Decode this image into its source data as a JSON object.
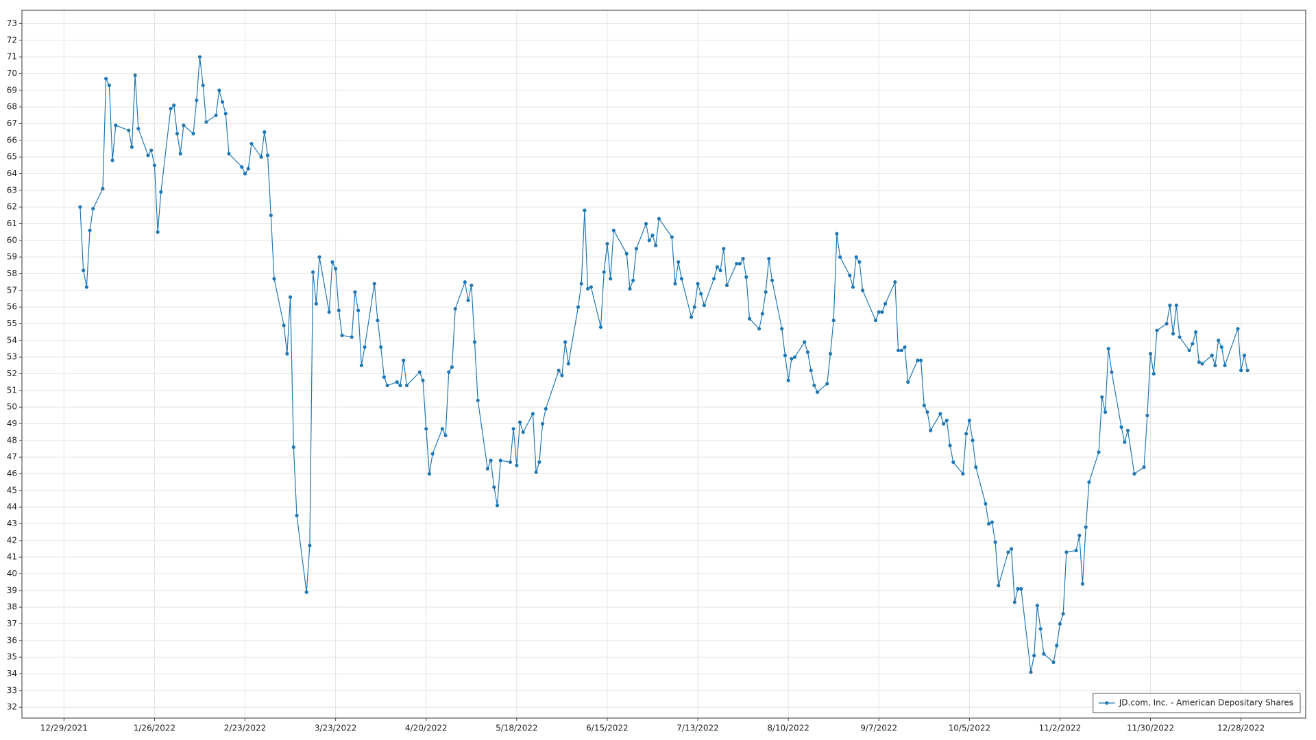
{
  "chart_data": {
    "type": "line",
    "x": [
      "1/3/2022",
      "1/4/2022",
      "1/5/2022",
      "1/6/2022",
      "1/7/2022",
      "1/10/2022",
      "1/11/2022",
      "1/12/2022",
      "1/13/2022",
      "1/14/2022",
      "1/18/2022",
      "1/19/2022",
      "1/20/2022",
      "1/21/2022",
      "1/24/2022",
      "1/25/2022",
      "1/26/2022",
      "1/27/2022",
      "1/28/2022",
      "1/31/2022",
      "2/1/2022",
      "2/2/2022",
      "2/3/2022",
      "2/4/2022",
      "2/7/2022",
      "2/8/2022",
      "2/9/2022",
      "2/10/2022",
      "2/11/2022",
      "2/14/2022",
      "2/15/2022",
      "2/16/2022",
      "2/17/2022",
      "2/18/2022",
      "2/22/2022",
      "2/23/2022",
      "2/24/2022",
      "2/25/2022",
      "2/28/2022",
      "3/1/2022",
      "3/2/2022",
      "3/3/2022",
      "3/4/2022",
      "3/7/2022",
      "3/8/2022",
      "3/9/2022",
      "3/10/2022",
      "3/11/2022",
      "3/14/2022",
      "3/15/2022",
      "3/16/2022",
      "3/17/2022",
      "3/18/2022",
      "3/21/2022",
      "3/22/2022",
      "3/23/2022",
      "3/24/2022",
      "3/25/2022",
      "3/28/2022",
      "3/29/2022",
      "3/30/2022",
      "3/31/2022",
      "4/1/2022",
      "4/4/2022",
      "4/5/2022",
      "4/6/2022",
      "4/7/2022",
      "4/8/2022",
      "4/11/2022",
      "4/12/2022",
      "4/13/2022",
      "4/14/2022",
      "4/18/2022",
      "4/19/2022",
      "4/20/2022",
      "4/21/2022",
      "4/22/2022",
      "4/25/2022",
      "4/26/2022",
      "4/27/2022",
      "4/28/2022",
      "4/29/2022",
      "5/2/2022",
      "5/3/2022",
      "5/4/2022",
      "5/5/2022",
      "5/6/2022",
      "5/9/2022",
      "5/10/2022",
      "5/11/2022",
      "5/12/2022",
      "5/13/2022",
      "5/16/2022",
      "5/17/2022",
      "5/18/2022",
      "5/19/2022",
      "5/20/2022",
      "5/23/2022",
      "5/24/2022",
      "5/25/2022",
      "5/26/2022",
      "5/27/2022",
      "5/31/2022",
      "6/1/2022",
      "6/2/2022",
      "6/3/2022",
      "6/6/2022",
      "6/7/2022",
      "6/8/2022",
      "6/9/2022",
      "6/10/2022",
      "6/13/2022",
      "6/14/2022",
      "6/15/2022",
      "6/16/2022",
      "6/17/2022",
      "6/21/2022",
      "6/22/2022",
      "6/23/2022",
      "6/24/2022",
      "6/27/2022",
      "6/28/2022",
      "6/29/2022",
      "6/30/2022",
      "7/1/2022",
      "7/5/2022",
      "7/6/2022",
      "7/7/2022",
      "7/8/2022",
      "7/11/2022",
      "7/12/2022",
      "7/13/2022",
      "7/14/2022",
      "7/15/2022",
      "7/18/2022",
      "7/19/2022",
      "7/20/2022",
      "7/21/2022",
      "7/22/2022",
      "7/25/2022",
      "7/26/2022",
      "7/27/2022",
      "7/28/2022",
      "7/29/2022",
      "8/1/2022",
      "8/2/2022",
      "8/3/2022",
      "8/4/2022",
      "8/5/2022",
      "8/8/2022",
      "8/9/2022",
      "8/10/2022",
      "8/11/2022",
      "8/12/2022",
      "8/15/2022",
      "8/16/2022",
      "8/17/2022",
      "8/18/2022",
      "8/19/2022",
      "8/22/2022",
      "8/23/2022",
      "8/24/2022",
      "8/25/2022",
      "8/26/2022",
      "8/29/2022",
      "8/30/2022",
      "8/31/2022",
      "9/1/2022",
      "9/2/2022",
      "9/6/2022",
      "9/7/2022",
      "9/8/2022",
      "9/9/2022",
      "9/12/2022",
      "9/13/2022",
      "9/14/2022",
      "9/15/2022",
      "9/16/2022",
      "9/19/2022",
      "9/20/2022",
      "9/21/2022",
      "9/22/2022",
      "9/23/2022",
      "9/26/2022",
      "9/27/2022",
      "9/28/2022",
      "9/29/2022",
      "9/30/2022",
      "10/3/2022",
      "10/4/2022",
      "10/5/2022",
      "10/6/2022",
      "10/7/2022",
      "10/10/2022",
      "10/11/2022",
      "10/12/2022",
      "10/13/2022",
      "10/14/2022",
      "10/17/2022",
      "10/18/2022",
      "10/19/2022",
      "10/20/2022",
      "10/21/2022",
      "10/24/2022",
      "10/25/2022",
      "10/26/2022",
      "10/27/2022",
      "10/28/2022",
      "10/31/2022",
      "11/1/2022",
      "11/2/2022",
      "11/3/2022",
      "11/4/2022",
      "11/7/2022",
      "11/8/2022",
      "11/9/2022",
      "11/10/2022",
      "11/11/2022",
      "11/14/2022",
      "11/15/2022",
      "11/16/2022",
      "11/17/2022",
      "11/18/2022",
      "11/21/2022",
      "11/22/2022",
      "11/23/2022",
      "11/25/2022",
      "11/28/2022",
      "11/29/2022",
      "11/30/2022",
      "12/1/2022",
      "12/2/2022",
      "12/5/2022",
      "12/6/2022",
      "12/7/2022",
      "12/8/2022",
      "12/9/2022",
      "12/12/2022",
      "12/13/2022",
      "12/14/2022",
      "12/15/2022",
      "12/16/2022",
      "12/19/2022",
      "12/20/2022",
      "12/21/2022",
      "12/22/2022",
      "12/23/2022",
      "12/27/2022",
      "12/28/2022",
      "12/29/2022",
      "12/30/2022"
    ],
    "series": [
      {
        "name": "JD.com, Inc. - American Depositary Shares",
        "color": "#1f77b4",
        "values": [
          62.0,
          58.2,
          57.2,
          60.6,
          61.9,
          63.1,
          69.7,
          69.3,
          64.8,
          66.9,
          66.6,
          65.6,
          69.9,
          66.7,
          65.1,
          65.4,
          64.5,
          60.5,
          62.9,
          67.9,
          68.1,
          66.4,
          65.2,
          66.9,
          66.4,
          68.4,
          71.0,
          69.3,
          67.1,
          67.5,
          69.0,
          68.3,
          67.6,
          65.2,
          64.4,
          64.0,
          64.3,
          65.8,
          65.0,
          66.5,
          65.1,
          61.5,
          57.7,
          54.9,
          53.2,
          56.6,
          47.6,
          43.5,
          38.9,
          41.7,
          58.1,
          56.2,
          59.0,
          55.7,
          58.7,
          58.3,
          55.8,
          54.3,
          54.2,
          56.9,
          55.8,
          52.5,
          53.6,
          57.4,
          55.2,
          53.6,
          51.8,
          51.3,
          51.5,
          51.3,
          52.8,
          51.3,
          52.1,
          51.6,
          48.7,
          46.0,
          47.2,
          48.7,
          48.3,
          52.1,
          52.4,
          55.9,
          57.5,
          56.4,
          57.3,
          53.9,
          50.4,
          46.3,
          46.8,
          45.2,
          44.1,
          46.8,
          46.7,
          48.7,
          46.5,
          49.1,
          48.5,
          49.6,
          46.1,
          46.7,
          49.0,
          49.9,
          52.2,
          51.9,
          53.9,
          52.6,
          56.0,
          57.4,
          61.8,
          57.1,
          57.2,
          54.8,
          58.1,
          59.8,
          57.7,
          60.6,
          59.2,
          57.1,
          57.6,
          59.5,
          61.0,
          60.0,
          60.3,
          59.7,
          61.3,
          60.2,
          57.4,
          58.7,
          57.7,
          55.4,
          56.0,
          57.4,
          56.8,
          56.1,
          57.7,
          58.4,
          58.2,
          59.5,
          57.3,
          58.6,
          58.6,
          58.9,
          57.8,
          55.3,
          54.7,
          55.6,
          56.9,
          58.9,
          57.6,
          54.7,
          53.1,
          51.6,
          52.9,
          53.0,
          53.9,
          53.3,
          52.2,
          51.3,
          50.9,
          51.4,
          53.2,
          55.2,
          60.4,
          59.0,
          57.9,
          57.2,
          59.0,
          58.7,
          57.0,
          55.2,
          55.7,
          55.7,
          56.2,
          57.5,
          53.4,
          53.4,
          53.6,
          51.5,
          52.8,
          52.8,
          50.1,
          49.7,
          48.6,
          49.6,
          49.0,
          49.2,
          47.7,
          46.7,
          46.0,
          48.4,
          49.2,
          48.0,
          46.4,
          44.2,
          43.0,
          43.1,
          41.9,
          39.3,
          41.3,
          41.5,
          38.3,
          39.1,
          39.1,
          34.1,
          35.1,
          38.1,
          36.7,
          35.2,
          34.7,
          35.7,
          37.0,
          37.6,
          41.3,
          41.4,
          42.3,
          39.4,
          42.8,
          45.5,
          47.3,
          50.6,
          49.7,
          53.5,
          52.1,
          48.8,
          47.9,
          48.6,
          46.0,
          46.4,
          49.5,
          53.2,
          52.0,
          54.6,
          55.0,
          56.1,
          54.4,
          56.1,
          54.2,
          53.4,
          53.8,
          54.5,
          52.7,
          52.6,
          53.1,
          52.5,
          54.0,
          53.6,
          52.5,
          54.7,
          52.2,
          53.1,
          52.2
        ]
      }
    ],
    "xlim": [
      "12/16/2021",
      "1/17/2023"
    ],
    "xticks": [
      "12/29/2021",
      "1/26/2022",
      "2/23/2022",
      "3/23/2022",
      "4/20/2022",
      "5/18/2022",
      "6/15/2022",
      "7/13/2022",
      "8/10/2022",
      "9/7/2022",
      "10/5/2022",
      "11/2/2022",
      "11/30/2022",
      "12/28/2022"
    ],
    "ylim": [
      31.35,
      73.8
    ],
    "yticks": [
      32,
      33,
      34,
      35,
      36,
      37,
      38,
      39,
      40,
      41,
      42,
      43,
      44,
      45,
      46,
      47,
      48,
      49,
      50,
      51,
      52,
      53,
      54,
      55,
      56,
      57,
      58,
      59,
      60,
      61,
      62,
      63,
      64,
      65,
      66,
      67,
      68,
      69,
      70,
      71,
      72,
      73
    ],
    "grid": true,
    "legend": "lower right"
  }
}
